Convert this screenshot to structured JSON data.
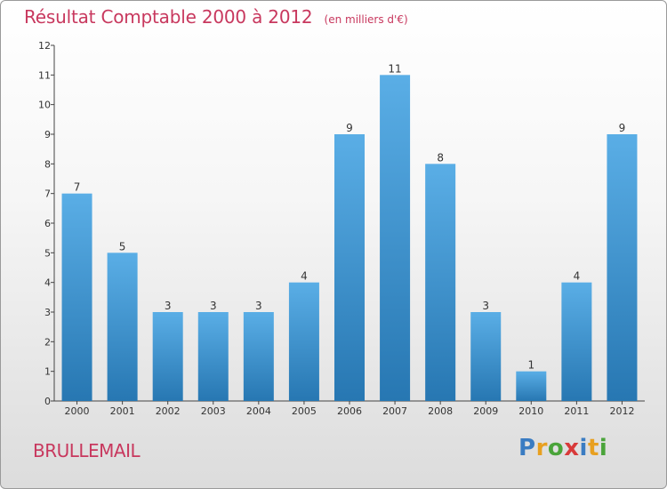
{
  "chart_data": {
    "type": "bar",
    "title": "Résultat Comptable 2000 à 2012",
    "subtitle": "(en milliers d'€)",
    "categories": [
      "2000",
      "2001",
      "2002",
      "2003",
      "2004",
      "2005",
      "2006",
      "2007",
      "2008",
      "2009",
      "2010",
      "2011",
      "2012"
    ],
    "values": [
      7,
      5,
      3,
      3,
      3,
      4,
      9,
      11,
      8,
      3,
      1,
      4,
      9
    ],
    "ylim": [
      0,
      12
    ],
    "yticks": [
      0,
      1,
      2,
      3,
      4,
      5,
      6,
      7,
      8,
      9,
      10,
      11,
      12
    ],
    "xlabel": "",
    "ylabel": "",
    "grid": false,
    "bar_color_top": "#5aaee6",
    "bar_color_bottom": "#2777b2"
  },
  "footer": {
    "place": "BRULLEMAIL",
    "logo": {
      "letters": [
        "P",
        "r",
        "o",
        "x",
        "i",
        "t",
        "i"
      ],
      "colors": [
        "#3a7cc2",
        "#e8a020",
        "#4aa43a",
        "#d83a3a",
        "#3a7cc2",
        "#e8a020",
        "#4aa43a"
      ]
    }
  },
  "colors": {
    "title": "#c8385e"
  }
}
